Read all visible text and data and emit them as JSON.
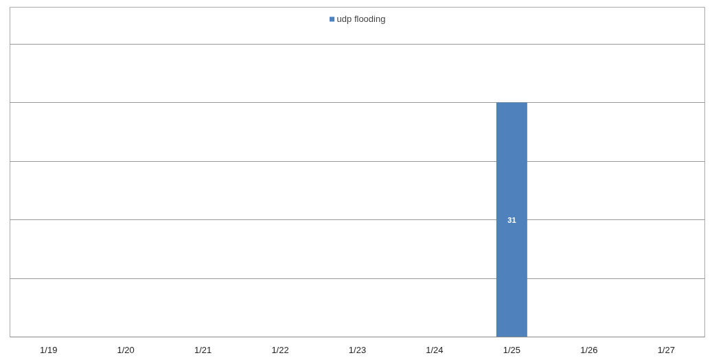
{
  "chart_data": {
    "type": "bar",
    "categories": [
      "1/19",
      "1/20",
      "1/21",
      "1/22",
      "1/23",
      "1/24",
      "1/25",
      "1/26",
      "1/27"
    ],
    "series": [
      {
        "name": "udp flooding",
        "color": "#4f81bd",
        "values": [
          null,
          null,
          null,
          null,
          null,
          null,
          31,
          null,
          null
        ]
      }
    ],
    "ylim": [
      0,
      43.6
    ],
    "yticks": [
      {
        "value": 0,
        "label": null
      },
      {
        "value": 7.75,
        "label": null
      },
      {
        "value": 15.5,
        "label": null
      },
      {
        "value": 23.25,
        "label": null
      },
      {
        "value": 31,
        "label": null
      },
      {
        "value": 38.75,
        "label": null
      }
    ],
    "grid": "y",
    "legend": "top",
    "data_labels": true,
    "tick_labels": "x"
  }
}
